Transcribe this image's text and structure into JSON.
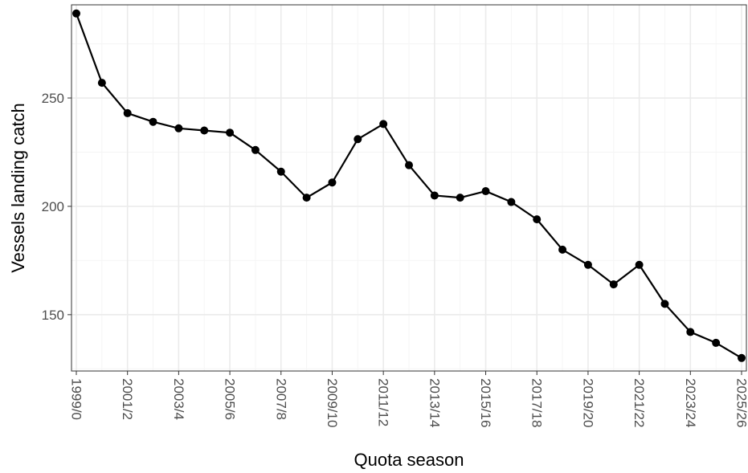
{
  "chart_data": {
    "type": "line",
    "title": "",
    "xlabel": "Quota season",
    "ylabel": "Vessels landing catch",
    "x": [
      "1999/0",
      "2000/1",
      "2001/2",
      "2002/3",
      "2003/4",
      "2004/5",
      "2005/6",
      "2006/7",
      "2007/8",
      "2008/9",
      "2009/10",
      "2010/11",
      "2011/12",
      "2012/13",
      "2013/14",
      "2014/15",
      "2015/16",
      "2016/17",
      "2017/18",
      "2018/19",
      "2019/20",
      "2020/21",
      "2021/22",
      "2022/23",
      "2023/24",
      "2024/25",
      "2025/26"
    ],
    "x_tick_labels": [
      "1999/0",
      "2001/2",
      "2003/4",
      "2005/6",
      "2007/8",
      "2009/10",
      "2011/12",
      "2013/14",
      "2015/16",
      "2017/18",
      "2019/20",
      "2021/22",
      "2023/24",
      "2025/26"
    ],
    "series": [
      {
        "values": [
          289,
          257,
          243,
          239,
          236,
          235,
          234,
          226,
          216,
          204,
          211,
          231,
          238,
          219,
          205,
          204,
          207,
          202,
          194,
          180,
          173,
          164,
          173,
          155,
          142,
          137,
          130
        ]
      }
    ],
    "y_ticks": [
      150,
      200,
      250
    ],
    "ylim": [
      124,
      293
    ],
    "grid": true,
    "legend": "none",
    "colors": {
      "line": "#000000",
      "point": "#000000",
      "grid_major": "#ebebeb",
      "grid_minor": "#f5f5f5",
      "panel_border": "#333333",
      "tick_text": "#4d4d4d",
      "axis_title": "#000000"
    }
  }
}
